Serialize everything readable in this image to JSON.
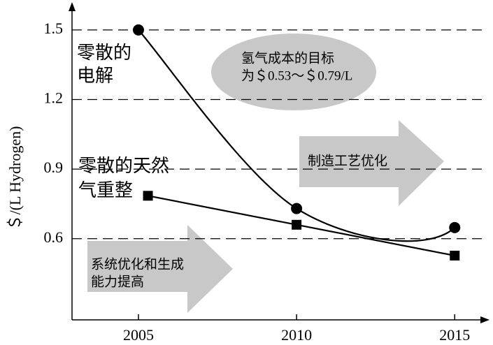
{
  "chart_data": {
    "type": "line",
    "ylabel": "＄/(L Hydrogen)",
    "xlim": [
      2002.9,
      2016.1
    ],
    "xticks": [
      2005,
      2010,
      2015
    ],
    "ylim": [
      0.25,
      1.62
    ],
    "yticks": [
      {
        "value": 1.5,
        "label": "1.5"
      },
      {
        "value": 1.2,
        "label": "1.2"
      },
      {
        "value": 0.9,
        "label": "0.9"
      },
      {
        "value": 0.6,
        "label": "0.6"
      }
    ],
    "grid": true,
    "grid_style": "dashed",
    "series": [
      {
        "marker": "circle",
        "color": "#000000",
        "smooth": true,
        "x": [
          2005,
          2010,
          2015
        ],
        "values": [
          1.5,
          0.73,
          0.648
        ]
      },
      {
        "marker": "square",
        "color": "#000000",
        "smooth": false,
        "x": [
          2005.3,
          2010,
          2015
        ],
        "values": [
          0.785,
          0.66,
          0.527
        ]
      }
    ],
    "annotations": [
      {
        "lines": [
          "零散的",
          "电解"
        ]
      },
      {
        "lines": [
          "零散的天然",
          "气重整"
        ]
      },
      {
        "lines": [
          "氢气成本的目标",
          "为＄0.53～＄0.79/L"
        ]
      },
      {
        "lines": [
          "制造工艺优化"
        ]
      },
      {
        "lines": [
          "系统优化和生成",
          "能力提高"
        ]
      }
    ]
  }
}
